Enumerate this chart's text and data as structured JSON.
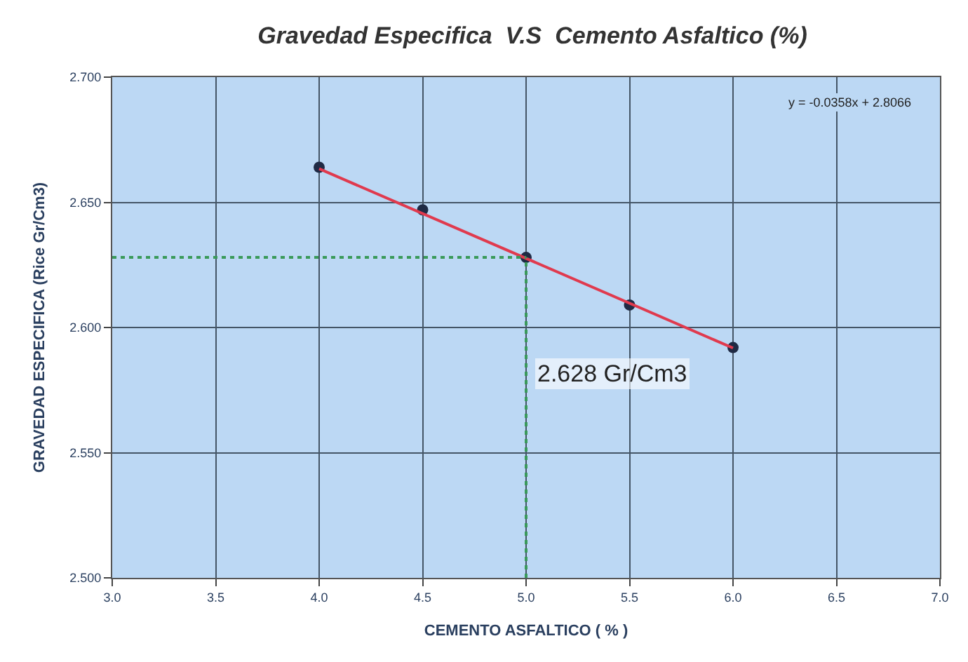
{
  "chart_data": {
    "type": "scatter",
    "title": "Gravedad Especifica  V.S  Cemento Asfaltico (%)",
    "xlabel": "CEMENTO ASFALTICO ( % )",
    "ylabel": "GRAVEDAD ESPECIFICA (Rice Gr/Cm3)",
    "x": [
      4.0,
      4.5,
      5.0,
      5.5,
      6.0
    ],
    "series": [
      {
        "color": "#1f2a44",
        "marker": "circle",
        "values": [
          2.664,
          2.647,
          2.628,
          2.609,
          2.592
        ]
      },
      {
        "type": "line",
        "color": "#e03a4e",
        "marker": "none",
        "x": [
          4.0,
          6.0
        ],
        "values": [
          2.6634,
          2.5918
        ]
      }
    ],
    "xlim": [
      3.0,
      7.0
    ],
    "xticks": [
      {
        "value": 3.0,
        "label": "3.0"
      },
      {
        "value": 3.5,
        "label": "3.5"
      },
      {
        "value": 4.0,
        "label": "4.0"
      },
      {
        "value": 4.5,
        "label": "4.5"
      },
      {
        "value": 5.0,
        "label": "5.0"
      },
      {
        "value": 5.5,
        "label": "5.5"
      },
      {
        "value": 6.0,
        "label": "6.0"
      },
      {
        "value": 6.5,
        "label": "6.5"
      },
      {
        "value": 7.0,
        "label": "7.0"
      }
    ],
    "ylim": [
      2.5,
      2.7
    ],
    "yticks": [
      {
        "value": 2.5,
        "label": "2.500"
      },
      {
        "value": 2.55,
        "label": "2.550"
      },
      {
        "value": 2.6,
        "label": "2.600"
      },
      {
        "value": 2.65,
        "label": "2.650"
      },
      {
        "value": 2.7,
        "label": "2.700"
      }
    ],
    "ref_lines": [
      {
        "axis": "y",
        "value": 2.628,
        "color": "#3a9a5a",
        "line_style": "dotted"
      },
      {
        "axis": "x",
        "value": 5.0,
        "color": "#3a9a5a",
        "line_style": "dotted"
      }
    ],
    "annotations": [
      "y = -0.0358x + 2.8066",
      "2.628 Gr/Cm3"
    ],
    "grid": true
  }
}
